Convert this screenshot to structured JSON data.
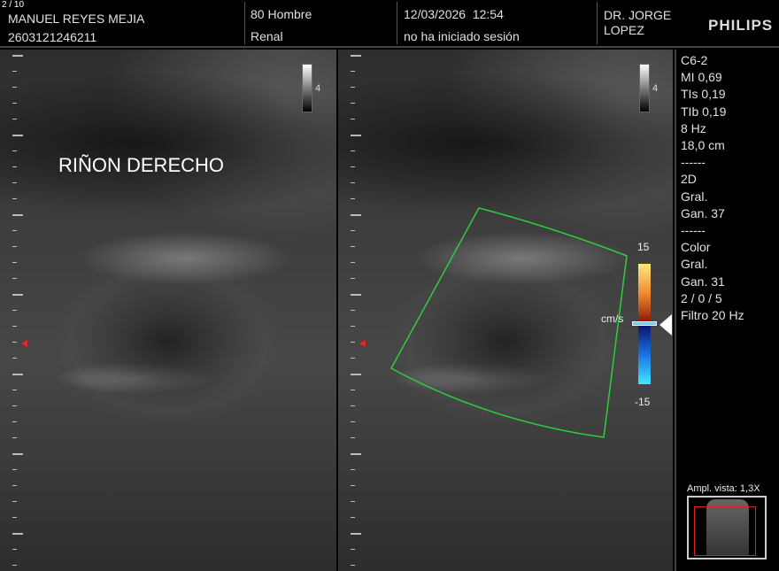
{
  "header": {
    "counter": "2 / 10",
    "patient_name": "MANUEL REYES MEJIA",
    "patient_id": "2603121246211",
    "age_sex": "80 Hombre",
    "exam": "Renal",
    "datetime": "12/03/2026  12:54",
    "login_status": "no ha iniciado sesión",
    "doctor_line1": "DR. JORGE",
    "doctor_line2": "LOPEZ",
    "brand": "PHILIPS"
  },
  "left_image": {
    "annotation": "RIÑON DERECHO",
    "gray_scale_label": "4"
  },
  "right_image": {
    "gray_scale_label": "4",
    "color_scale": {
      "max": "15",
      "min": "-15",
      "unit": "cm/s",
      "colors": [
        "#ffe680",
        "#f08a30",
        "#8a1a0a",
        "#0a1870",
        "#1a70e0",
        "#40e8ff"
      ]
    },
    "color_box_color": "#2ecc40"
  },
  "params": [
    "C6-2",
    "MI 0,69",
    "TIs 0,19",
    "TIb 0,19",
    "8 Hz",
    "18,0 cm",
    "------",
    "2D",
    "Gral.",
    "Gan. 37",
    "------",
    "Color",
    "Gral.",
    "Gan. 31",
    "2 / 0 / 5",
    "Filtro 20 Hz"
  ],
  "zoom_view": {
    "label": "Ampl. vista: 1,3X"
  }
}
